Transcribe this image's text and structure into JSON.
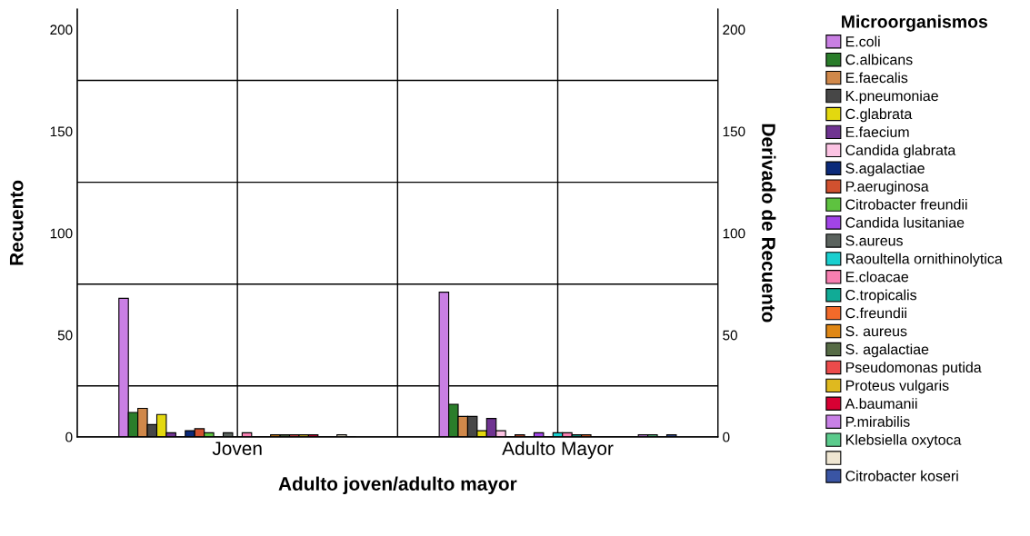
{
  "chart_data": {
    "type": "bar",
    "xlabel": "Adulto joven/adulto mayor",
    "ylabel": "Recuento",
    "y2label": "Derivado de Recuento",
    "legend_title": "Microorganismos",
    "categories": [
      "Joven",
      "Adulto Mayor"
    ],
    "series": [
      {
        "name": "E.coli",
        "color": "#c97fe3",
        "values": [
          68,
          71
        ]
      },
      {
        "name": "C.albicans",
        "color": "#2a7d2a",
        "values": [
          12,
          16
        ]
      },
      {
        "name": "E.faecalis",
        "color": "#d0884a",
        "values": [
          14,
          10
        ]
      },
      {
        "name": "K.pneumoniae",
        "color": "#474747",
        "values": [
          6,
          10
        ]
      },
      {
        "name": "C.glabrata",
        "color": "#e3d80f",
        "values": [
          11,
          3
        ]
      },
      {
        "name": "E.faecium",
        "color": "#6f3391",
        "values": [
          2,
          9
        ]
      },
      {
        "name": "Candida glabrata",
        "color": "#fcc3e3",
        "values": [
          0,
          3
        ]
      },
      {
        "name": "S.agalactiae",
        "color": "#0b2a7a",
        "values": [
          3,
          0
        ]
      },
      {
        "name": "P.aeruginosa",
        "color": "#d1512f",
        "values": [
          4,
          1
        ]
      },
      {
        "name": "Citrobacter freundii",
        "color": "#5ec240",
        "values": [
          2,
          0
        ]
      },
      {
        "name": "Candida lusitaniae",
        "color": "#a244e8",
        "values": [
          0,
          2
        ]
      },
      {
        "name": "S.aureus",
        "color": "#5b635e",
        "values": [
          2,
          0
        ]
      },
      {
        "name": "Raoultella ornithinolytica",
        "color": "#19cfcf",
        "values": [
          0,
          2
        ]
      },
      {
        "name": "E.cloacae",
        "color": "#f77fb1",
        "values": [
          2,
          2
        ]
      },
      {
        "name": "C.tropicalis",
        "color": "#11ab96",
        "values": [
          0,
          1
        ]
      },
      {
        "name": "C.freundii",
        "color": "#f26a2a",
        "values": [
          0,
          1
        ]
      },
      {
        "name": "S. aureus",
        "color": "#df8715",
        "values": [
          1,
          0
        ]
      },
      {
        "name": "S. agalactiae",
        "color": "#566b45",
        "values": [
          1,
          0
        ]
      },
      {
        "name": "Pseudomonas putida",
        "color": "#ec4b4b",
        "values": [
          1,
          0
        ]
      },
      {
        "name": "Proteus vulgaris",
        "color": "#dfb91f",
        "values": [
          1,
          0
        ]
      },
      {
        "name": "A.baumanii",
        "color": "#d80033",
        "values": [
          1,
          0
        ]
      },
      {
        "name": "P.mirabilis",
        "color": "#c880e6",
        "values": [
          0,
          1
        ]
      },
      {
        "name": "Klebsiella oxytoca",
        "color": "#5bcb8c",
        "values": [
          0,
          1
        ]
      },
      {
        "color": "#efe6d2",
        "values": [
          1,
          0
        ]
      },
      {
        "name": "Citrobacter koseri",
        "color": "#3a55a4",
        "values": [
          0,
          1
        ]
      }
    ],
    "ylim": [
      0,
      210
    ],
    "yticks": [
      0,
      50,
      100,
      150,
      200
    ],
    "y2lim": [
      0,
      210
    ],
    "y2ticks": [
      0,
      50,
      100,
      150,
      200
    ],
    "ref_lines": [
      {
        "axis": "y",
        "value": 25,
        "color": "#000000"
      },
      {
        "axis": "y",
        "value": 75,
        "color": "#000000"
      },
      {
        "axis": "y",
        "value": 125,
        "color": "#000000"
      },
      {
        "axis": "y",
        "value": 175,
        "color": "#000000"
      }
    ],
    "grid": "x",
    "legend": "right"
  }
}
